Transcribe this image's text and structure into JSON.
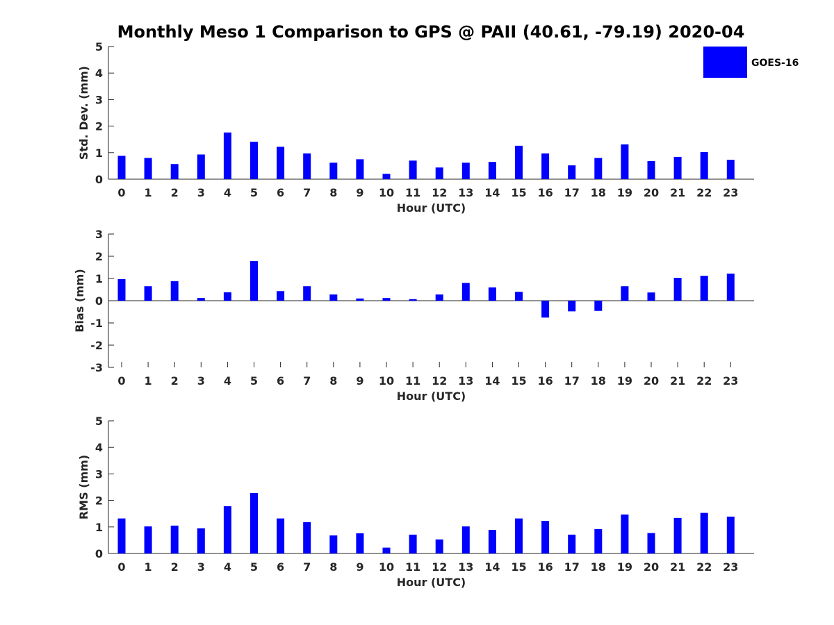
{
  "title": "Monthly Meso 1 Comparison to GPS @ PAII (40.61, -79.19) 2020-04",
  "legend": {
    "label": "GOES-16",
    "color": "#0000ff",
    "placement": "top-right"
  },
  "chart_data": [
    {
      "type": "bar",
      "categories": [
        "0",
        "1",
        "2",
        "3",
        "4",
        "5",
        "6",
        "7",
        "8",
        "9",
        "10",
        "11",
        "12",
        "13",
        "14",
        "15",
        "16",
        "17",
        "18",
        "19",
        "20",
        "21",
        "22",
        "23"
      ],
      "series": [
        {
          "name": "GOES-16",
          "values": [
            0.88,
            0.8,
            0.57,
            0.93,
            1.76,
            1.41,
            1.22,
            0.97,
            0.62,
            0.75,
            0.2,
            0.7,
            0.44,
            0.62,
            0.65,
            1.26,
            0.97,
            0.52,
            0.8,
            1.31,
            0.68,
            0.84,
            1.02,
            0.73
          ]
        }
      ],
      "xlabel": "Hour (UTC)",
      "ylabel": "Std. Dev. (mm)",
      "ylim": [
        0,
        5
      ],
      "yticks": [
        0,
        1,
        2,
        3,
        4,
        5
      ],
      "grid": false
    },
    {
      "type": "bar",
      "categories": [
        "0",
        "1",
        "2",
        "3",
        "4",
        "5",
        "6",
        "7",
        "8",
        "9",
        "10",
        "11",
        "12",
        "13",
        "14",
        "15",
        "16",
        "17",
        "18",
        "19",
        "20",
        "21",
        "22",
        "23"
      ],
      "series": [
        {
          "name": "GOES-16",
          "values": [
            0.97,
            0.65,
            0.88,
            0.12,
            0.38,
            1.78,
            0.43,
            0.65,
            0.28,
            0.1,
            0.12,
            0.07,
            0.28,
            0.8,
            0.6,
            0.4,
            -0.76,
            -0.48,
            -0.46,
            0.65,
            0.37,
            1.03,
            1.12,
            1.22
          ]
        }
      ],
      "xlabel": "Hour (UTC)",
      "ylabel": "Bias (mm)",
      "ylim": [
        -3,
        3
      ],
      "yticks": [
        -3,
        -2,
        -1,
        0,
        1,
        2,
        3
      ],
      "grid": false
    },
    {
      "type": "bar",
      "categories": [
        "0",
        "1",
        "2",
        "3",
        "4",
        "5",
        "6",
        "7",
        "8",
        "9",
        "10",
        "11",
        "12",
        "13",
        "14",
        "15",
        "16",
        "17",
        "18",
        "19",
        "20",
        "21",
        "22",
        "23"
      ],
      "series": [
        {
          "name": "GOES-16",
          "values": [
            1.32,
            1.02,
            1.05,
            0.95,
            1.78,
            2.28,
            1.32,
            1.18,
            0.68,
            0.76,
            0.22,
            0.71,
            0.53,
            1.02,
            0.89,
            1.32,
            1.23,
            0.71,
            0.92,
            1.47,
            0.77,
            1.34,
            1.53,
            1.39
          ]
        }
      ],
      "xlabel": "Hour (UTC)",
      "ylabel": "RMS (mm)",
      "ylim": [
        0,
        5
      ],
      "yticks": [
        0,
        1,
        2,
        3,
        4,
        5
      ],
      "grid": false
    }
  ]
}
